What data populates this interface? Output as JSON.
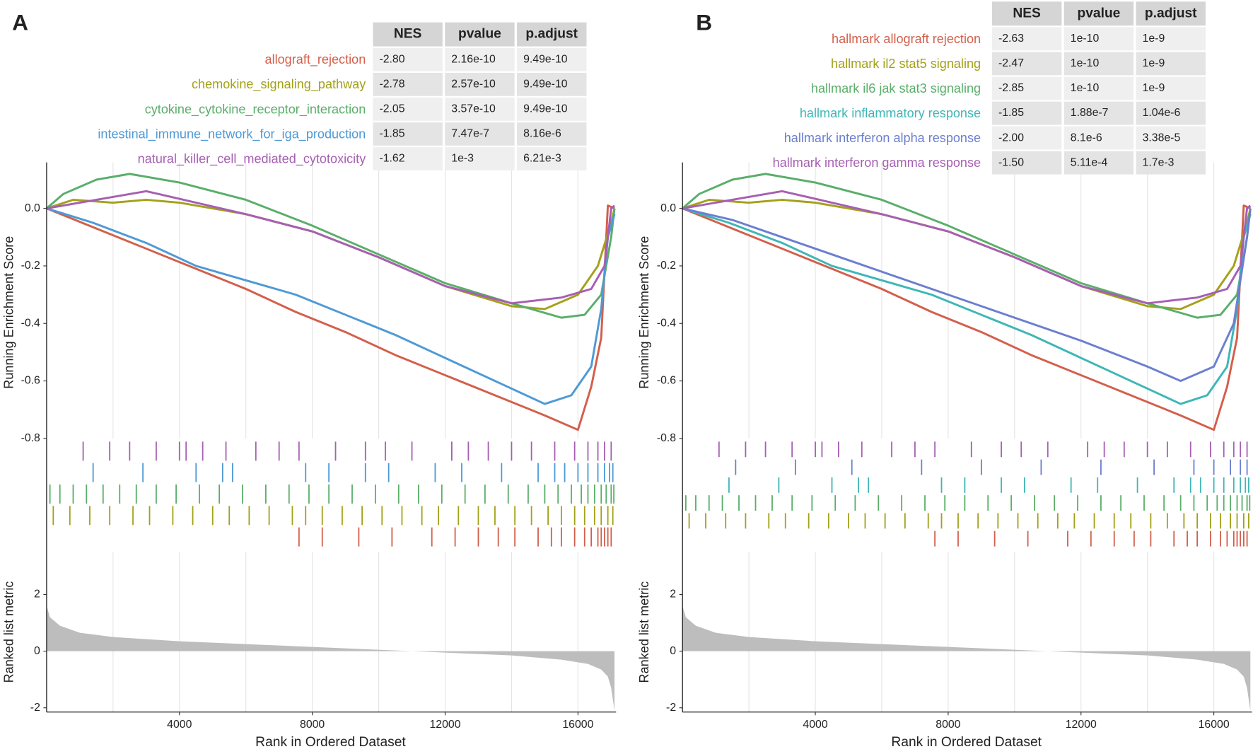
{
  "chart_data": [
    {
      "type": "gsea",
      "panel_label": "A",
      "table": {
        "columns": [
          "NES",
          "pvalue",
          "p.adjust"
        ],
        "rows": [
          [
            "-2.80",
            "2.16e-10",
            "9.49e-10"
          ],
          [
            "-2.78",
            "2.57e-10",
            "9.49e-10"
          ],
          [
            "-2.05",
            "3.57e-10",
            "9.49e-10"
          ],
          [
            "-1.85",
            "7.47e-7",
            "8.16e-6"
          ],
          [
            "-1.62",
            "1e-3",
            "6.21e-3"
          ]
        ]
      },
      "ylabel": "Running Enrichment Score",
      "ylim": [
        -0.8,
        0.16
      ],
      "yticks": [
        {
          "value": 0,
          "label": "0.0"
        },
        {
          "value": -0.2,
          "label": "-0.2"
        },
        {
          "value": -0.4,
          "label": "-0.4"
        },
        {
          "value": -0.6,
          "label": "-0.6"
        },
        {
          "value": -0.8,
          "label": "-0.8"
        }
      ],
      "xlabel": "Rank in Ordered Dataset",
      "xlim": [
        0,
        17100
      ],
      "xticks": [
        4000,
        8000,
        12000,
        16000
      ],
      "xgrid": [
        2000,
        4000,
        6000,
        8000,
        10000,
        12000,
        14000,
        16000
      ],
      "grid": true,
      "series": [
        {
          "name": "allograft_rejection",
          "color": "#d35f4b",
          "x": [
            0,
            1500,
            3000,
            4500,
            6000,
            7500,
            9000,
            10500,
            12000,
            13500,
            15000,
            16000,
            16400,
            16700,
            16900,
            17100
          ],
          "values": [
            0,
            -0.07,
            -0.14,
            -0.21,
            -0.28,
            -0.36,
            -0.43,
            -0.51,
            -0.58,
            -0.65,
            -0.72,
            -0.77,
            -0.62,
            -0.45,
            0.01,
            0.0
          ],
          "hits": [
            7600,
            8300,
            9400,
            10400,
            11600,
            12300,
            13000,
            13600,
            14100,
            14800,
            15200,
            15500,
            15900,
            16200,
            16400,
            16600,
            16700,
            16800,
            16900,
            17000
          ]
        },
        {
          "name": "chemokine_signaling_pathway",
          "color": "#a3a118",
          "x": [
            0,
            800,
            2000,
            3000,
            4000,
            6000,
            8000,
            10000,
            12000,
            14000,
            15000,
            16000,
            16600,
            17000,
            17100
          ],
          "values": [
            0,
            0.03,
            0.02,
            0.03,
            0.02,
            -0.02,
            -0.08,
            -0.17,
            -0.27,
            -0.34,
            -0.35,
            -0.3,
            -0.2,
            -0.05,
            0
          ],
          "hits": [
            200,
            700,
            1300,
            1900,
            2600,
            3100,
            3800,
            4400,
            5000,
            5500,
            6100,
            6700,
            7400,
            7800,
            8300,
            8900,
            9500,
            10100,
            10700,
            11300,
            11800,
            12400,
            13000,
            13500,
            14100,
            14600,
            15100,
            15500,
            15900,
            16200,
            16500,
            16700,
            16900,
            17050
          ]
        },
        {
          "name": "cytokine_cytokine_receptor_interaction",
          "color": "#5aae6a",
          "x": [
            0,
            500,
            1500,
            2500,
            4000,
            6000,
            8000,
            10000,
            12000,
            14000,
            15500,
            16200,
            16700,
            17000,
            17100
          ],
          "values": [
            0,
            0.05,
            0.1,
            0.12,
            0.09,
            0.03,
            -0.06,
            -0.16,
            -0.26,
            -0.33,
            -0.38,
            -0.37,
            -0.3,
            -0.1,
            0
          ],
          "hits": [
            100,
            400,
            800,
            1200,
            1700,
            2200,
            2700,
            3300,
            3900,
            4600,
            5200,
            5900,
            6600,
            7300,
            7900,
            8500,
            9200,
            9900,
            10600,
            11200,
            11900,
            12600,
            13200,
            13900,
            14500,
            15000,
            15400,
            15800,
            16100,
            16300,
            16500,
            16700,
            16850,
            17000,
            17080
          ]
        },
        {
          "name": "intestinal_immune_network_for_iga_production",
          "color": "#4e9ad6",
          "x": [
            0,
            1400,
            3000,
            4500,
            6000,
            7500,
            9000,
            10500,
            12000,
            13500,
            15000,
            15800,
            16400,
            16700,
            16900,
            17100
          ],
          "values": [
            0,
            -0.05,
            -0.12,
            -0.2,
            -0.25,
            -0.3,
            -0.37,
            -0.44,
            -0.52,
            -0.6,
            -0.68,
            -0.65,
            -0.55,
            -0.35,
            -0.1,
            -0.02
          ],
          "hits": [
            1400,
            2900,
            4500,
            5300,
            5600,
            7800,
            8500,
            9600,
            10300,
            11700,
            12500,
            13700,
            14800,
            15300,
            15600,
            16000,
            16300,
            16600,
            16800,
            16950,
            17050
          ]
        },
        {
          "name": "natural_killer_cell_mediated_cytotoxicity",
          "color": "#a65fb3",
          "x": [
            0,
            1500,
            3000,
            4500,
            6000,
            8000,
            10000,
            12000,
            14000,
            15500,
            16400,
            16800,
            17000,
            17100
          ],
          "values": [
            0,
            0.03,
            0.06,
            0.02,
            -0.02,
            -0.08,
            -0.17,
            -0.27,
            -0.33,
            -0.31,
            -0.28,
            -0.2,
            0,
            0.01
          ],
          "hits": [
            1100,
            1900,
            2500,
            3300,
            4000,
            4200,
            4700,
            5400,
            6300,
            7000,
            7600,
            8700,
            9600,
            10200,
            11000,
            12200,
            12700,
            13300,
            14000,
            14600,
            15300,
            15900,
            16300,
            16600,
            16800,
            17000
          ]
        }
      ],
      "metric": {
        "ylabel": "Ranked list metric",
        "ylim": [
          -2.15,
          3.5
        ],
        "yticks": [
          -2,
          0,
          2
        ],
        "x": [
          0,
          100,
          400,
          1000,
          2000,
          4000,
          6000,
          8000,
          10000,
          12000,
          14000,
          15500,
          16300,
          16700,
          16900,
          17000,
          17100
        ],
        "values": [
          1.6,
          1.2,
          0.9,
          0.65,
          0.5,
          0.35,
          0.25,
          0.15,
          0.05,
          -0.05,
          -0.15,
          -0.3,
          -0.45,
          -0.65,
          -0.9,
          -1.3,
          -2.1
        ]
      }
    },
    {
      "type": "gsea",
      "panel_label": "B",
      "table": {
        "columns": [
          "NES",
          "pvalue",
          "p.adjust"
        ],
        "rows": [
          [
            "-2.63",
            "1e-10",
            "1e-9"
          ],
          [
            "-2.47",
            "1e-10",
            "1e-9"
          ],
          [
            "-2.85",
            "1e-10",
            "1e-9"
          ],
          [
            "-1.85",
            "1.88e-7",
            "1.04e-6"
          ],
          [
            "-2.00",
            "8.1e-6",
            "3.38e-5"
          ],
          [
            "-1.50",
            "5.11e-4",
            "1.7e-3"
          ]
        ]
      },
      "ylabel": "Running Enrichment Score",
      "ylim": [
        -0.8,
        0.16
      ],
      "yticks": [
        {
          "value": 0,
          "label": "0.0"
        },
        {
          "value": -0.2,
          "label": "-0.2"
        },
        {
          "value": -0.4,
          "label": "-0.4"
        },
        {
          "value": -0.6,
          "label": "-0.6"
        },
        {
          "value": -0.8,
          "label": "-0.8"
        }
      ],
      "xlabel": "Rank in Ordered Dataset",
      "xlim": [
        0,
        17100
      ],
      "xticks": [
        4000,
        8000,
        12000,
        16000
      ],
      "xgrid": [
        2000,
        4000,
        6000,
        8000,
        10000,
        12000,
        14000,
        16000
      ],
      "grid": true,
      "series": [
        {
          "name": "hallmark allograft rejection",
          "color": "#d35f4b",
          "x": [
            0,
            1500,
            3000,
            4500,
            6000,
            7500,
            9000,
            10500,
            12000,
            13500,
            15000,
            16000,
            16400,
            16700,
            16900,
            17100
          ],
          "values": [
            0,
            -0.07,
            -0.14,
            -0.21,
            -0.28,
            -0.36,
            -0.43,
            -0.51,
            -0.58,
            -0.65,
            -0.72,
            -0.77,
            -0.62,
            -0.45,
            0.01,
            0.0
          ],
          "hits": [
            7600,
            8300,
            9400,
            10400,
            11600,
            12300,
            13000,
            13600,
            14100,
            14800,
            15200,
            15500,
            15900,
            16200,
            16400,
            16600,
            16700,
            16800,
            16900,
            17000
          ]
        },
        {
          "name": "hallmark il2 stat5 signaling",
          "color": "#a3a118",
          "x": [
            0,
            800,
            2000,
            3000,
            4000,
            6000,
            8000,
            10000,
            12000,
            14000,
            15000,
            16000,
            16600,
            17000,
            17100
          ],
          "values": [
            0,
            0.03,
            0.02,
            0.03,
            0.02,
            -0.02,
            -0.08,
            -0.17,
            -0.27,
            -0.34,
            -0.35,
            -0.3,
            -0.2,
            -0.05,
            0
          ],
          "hits": [
            200,
            700,
            1300,
            1900,
            2600,
            3100,
            3800,
            4400,
            5000,
            5500,
            6100,
            6700,
            7400,
            7800,
            8300,
            8900,
            9500,
            10100,
            10700,
            11300,
            11800,
            12400,
            13000,
            13500,
            14100,
            14600,
            15100,
            15500,
            15900,
            16200,
            16500,
            16700,
            16900,
            17050
          ]
        },
        {
          "name": "hallmark il6 jak stat3 signaling",
          "color": "#5aae6a",
          "x": [
            0,
            500,
            1500,
            2500,
            4000,
            6000,
            8000,
            10000,
            12000,
            14000,
            15500,
            16200,
            16700,
            17000,
            17100
          ],
          "values": [
            0,
            0.05,
            0.1,
            0.12,
            0.09,
            0.03,
            -0.06,
            -0.16,
            -0.26,
            -0.33,
            -0.38,
            -0.37,
            -0.3,
            -0.1,
            0
          ],
          "hits": [
            100,
            400,
            800,
            1200,
            1700,
            2200,
            2700,
            3300,
            3900,
            4600,
            5200,
            5900,
            6600,
            7300,
            7900,
            8500,
            9200,
            9900,
            10600,
            11200,
            11900,
            12600,
            13200,
            13900,
            14500,
            15000,
            15400,
            15800,
            16100,
            16300,
            16500,
            16700,
            16850,
            17000,
            17080
          ]
        },
        {
          "name": "hallmark inflammatory response",
          "color": "#3fb6b6",
          "x": [
            0,
            1400,
            3000,
            4500,
            6000,
            7500,
            9000,
            10500,
            12000,
            13500,
            15000,
            15800,
            16400,
            16700,
            16900,
            17100
          ],
          "values": [
            0,
            -0.05,
            -0.12,
            -0.2,
            -0.25,
            -0.3,
            -0.37,
            -0.44,
            -0.52,
            -0.6,
            -0.68,
            -0.65,
            -0.55,
            -0.35,
            -0.1,
            -0.02
          ],
          "hits": [
            1400,
            2900,
            4500,
            5300,
            5600,
            7800,
            8500,
            9600,
            10300,
            11700,
            12500,
            13700,
            14800,
            15300,
            15600,
            16000,
            16300,
            16600,
            16800,
            16950,
            17050
          ]
        },
        {
          "name": "hallmark interferon alpha response",
          "color": "#6b7fd0",
          "x": [
            0,
            1500,
            3000,
            4500,
            6000,
            8000,
            10000,
            12000,
            14000,
            15000,
            16000,
            16600,
            17000,
            17100
          ],
          "values": [
            0,
            -0.04,
            -0.1,
            -0.16,
            -0.22,
            -0.3,
            -0.38,
            -0.46,
            -0.55,
            -0.6,
            -0.55,
            -0.4,
            -0.1,
            0
          ],
          "hits": [
            1600,
            3400,
            5100,
            7200,
            9000,
            10800,
            12600,
            14200,
            15400,
            16000,
            16500,
            16800,
            17000
          ]
        },
        {
          "name": "hallmark interferon gamma response",
          "color": "#a65fb3",
          "x": [
            0,
            1500,
            3000,
            4500,
            6000,
            8000,
            10000,
            12000,
            14000,
            15500,
            16400,
            16800,
            17000,
            17100
          ],
          "values": [
            0,
            0.03,
            0.06,
            0.02,
            -0.02,
            -0.08,
            -0.17,
            -0.27,
            -0.33,
            -0.31,
            -0.28,
            -0.2,
            0,
            0.01
          ],
          "hits": [
            1100,
            1900,
            2500,
            3300,
            4000,
            4200,
            4700,
            5400,
            6300,
            7000,
            7600,
            8700,
            9600,
            10200,
            11000,
            12200,
            12700,
            13300,
            14000,
            14600,
            15300,
            15900,
            16300,
            16600,
            16800,
            17000
          ]
        }
      ],
      "metric": {
        "ylabel": "Ranked list metric",
        "ylim": [
          -2.15,
          3.5
        ],
        "yticks": [
          -2,
          0,
          2
        ],
        "x": [
          0,
          100,
          400,
          1000,
          2000,
          4000,
          6000,
          8000,
          10000,
          12000,
          14000,
          15500,
          16300,
          16700,
          16900,
          17000,
          17100
        ],
        "values": [
          1.6,
          1.2,
          0.9,
          0.65,
          0.5,
          0.35,
          0.25,
          0.15,
          0.05,
          -0.05,
          -0.15,
          -0.3,
          -0.45,
          -0.65,
          -0.9,
          -1.3,
          -2.1
        ]
      }
    }
  ]
}
